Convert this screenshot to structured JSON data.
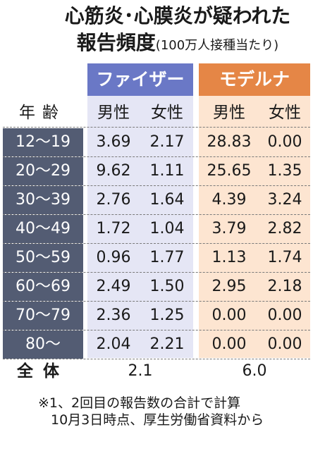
{
  "title": {
    "line1": "心筋炎･心膜炎が疑われた",
    "line2_main": "報告頻度",
    "line2_sub": "(100万人接種当たり)"
  },
  "vendors": {
    "pfizer": "ファイザー",
    "moderna": "モデルナ"
  },
  "headers": {
    "age": "年齢",
    "male": "男性",
    "female": "女性"
  },
  "rows": [
    {
      "age": "12〜19",
      "pfizer_male": "3.69",
      "pfizer_female": "2.17",
      "moderna_male": "28.83",
      "moderna_female": "0.00"
    },
    {
      "age": "20〜29",
      "pfizer_male": "9.62",
      "pfizer_female": "1.11",
      "moderna_male": "25.65",
      "moderna_female": "1.35"
    },
    {
      "age": "30〜39",
      "pfizer_male": "2.76",
      "pfizer_female": "1.64",
      "moderna_male": "4.39",
      "moderna_female": "3.24"
    },
    {
      "age": "40〜49",
      "pfizer_male": "1.72",
      "pfizer_female": "1.04",
      "moderna_male": "3.79",
      "moderna_female": "2.82"
    },
    {
      "age": "50〜59",
      "pfizer_male": "0.96",
      "pfizer_female": "1.77",
      "moderna_male": "1.13",
      "moderna_female": "1.74"
    },
    {
      "age": "60〜69",
      "pfizer_male": "2.49",
      "pfizer_female": "1.50",
      "moderna_male": "2.95",
      "moderna_female": "2.18"
    },
    {
      "age": "70〜79",
      "pfizer_male": "2.36",
      "pfizer_female": "1.25",
      "moderna_male": "0.00",
      "moderna_female": "0.00"
    },
    {
      "age": "80〜",
      "pfizer_male": "2.04",
      "pfizer_female": "2.21",
      "moderna_male": "0.00",
      "moderna_female": "0.00"
    }
  ],
  "total": {
    "label": "全体",
    "pfizer": "2.1",
    "moderna": "6.0"
  },
  "notes": [
    "※1、2回目の報告数の合計で計算",
    "10月3日時点、厚生労働省資料から"
  ],
  "colors": {
    "pfizer_header": "#6a78c6",
    "pfizer_column_bg": "#e5e6f5",
    "moderna_header": "#e58646",
    "moderna_column_bg": "#fde5d1",
    "age_cell_bg": "#535c73"
  }
}
